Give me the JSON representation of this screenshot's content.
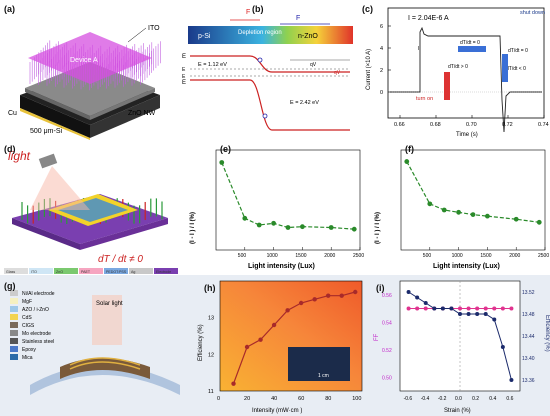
{
  "row1": {
    "a": {
      "label": "(a)",
      "texts": {
        "ito": "ITO",
        "device": "Device A",
        "cu": "Cu",
        "zno": "ZnO NW",
        "si": "500 μm-Si"
      }
    },
    "b": {
      "label": "(b)",
      "texts": {
        "psi": "p-Si",
        "depletion": "Depletion region",
        "nzno": "n-ZnO",
        "fpe": "F",
        "fpv": "F",
        "eg1": "E = 1.12 eV",
        "eg2": "E = 2.42 eV",
        "ec": "E",
        "ev": "E",
        "efn": "E",
        "efp": "E",
        "qvpy": "qV",
        "qdvl": "qV"
      }
    },
    "c": {
      "label": "(c)",
      "title": "I = 2.04E-6 A",
      "ylabel": "Current (×10 A)",
      "xlabel": "Time (s)",
      "ticks_x": [
        "0.66",
        "0.68",
        "0.70",
        "0.72",
        "0.74"
      ],
      "ticks_y": [
        "0",
        "2",
        "4",
        "6"
      ],
      "annotations": {
        "turnon": "turn on",
        "shutdown": "shut down",
        "dT0": "dT/dt = 0",
        "dTpos": "dT/dt > 0",
        "dTneg": "dT/dt < 0",
        "dT0b": "dT/dt = 0",
        "iph": "I"
      }
    }
  },
  "row2": {
    "d": {
      "label": "(d)",
      "light": "light",
      "formula": "dT / dt ≠ 0",
      "legend": [
        "Glass",
        "ITO",
        "ZnO",
        "PAET",
        "PEDOT:PSS",
        "Ag",
        "Electrode"
      ]
    },
    "e": {
      "label": "(e)",
      "ylabel": "(I - I ) / I (%)",
      "xlabel": "Light intensity (Lux)"
    },
    "f": {
      "label": "(f)",
      "ylabel": "(I - I ) / I (%)",
      "xlabel": "Light intensity (Lux)"
    }
  },
  "row3": {
    "g": {
      "label": "(g)",
      "legend": [
        "Ni/Al electrode",
        "MgF",
        "AZO / i-ZnO",
        "CdS",
        "CIGS",
        "Mo electrode",
        "Stainless steel",
        "Epoxy",
        "Mica"
      ],
      "light": "Solar light"
    },
    "h": {
      "label": "(h)",
      "ylabel": "Efficiency (%)",
      "xlabel": "Intensity (mW·cm )",
      "ticks_x": [
        "0",
        "20",
        "40",
        "60",
        "80",
        "100"
      ],
      "ticks_y": [
        "11",
        "12",
        "13"
      ],
      "scale": "1 cm"
    },
    "i": {
      "label": "(i)",
      "ylabel_left": "FF",
      "ylabel_right": "Efficiency (%)",
      "xlabel": "Strain (%)",
      "ticks_x": [
        "-0.6",
        "-0.4",
        "-0.2",
        "0.0",
        "0.2",
        "0.4",
        "0.6"
      ],
      "ticks_yl": [
        "0.56",
        "0.54",
        "0.52",
        "0.50"
      ],
      "ticks_yr": [
        "13.52",
        "13.48",
        "13.44",
        "13.40",
        "13.36"
      ]
    }
  },
  "chart_data": [
    {
      "type": "line",
      "panel": "e",
      "x": [
        100,
        500,
        750,
        1000,
        1250,
        1500,
        2000,
        2400
      ],
      "y": [
        10.5,
        3.8,
        3.0,
        3.2,
        2.7,
        2.8,
        2.7,
        2.5
      ],
      "xlabel": "Light intensity (Lux)",
      "xlim": [
        0,
        2500
      ],
      "ylim": [
        0,
        12
      ]
    },
    {
      "type": "line",
      "panel": "f",
      "x": [
        100,
        500,
        750,
        1000,
        1250,
        1500,
        2000,
        2400
      ],
      "y": [
        11.5,
        6.0,
        5.2,
        4.9,
        4.6,
        4.4,
        4.0,
        3.6
      ],
      "xlabel": "Light intensity (Lux)",
      "xlim": [
        0,
        2500
      ],
      "ylim": [
        0,
        13
      ]
    },
    {
      "type": "line",
      "panel": "h",
      "x": [
        10,
        20,
        30,
        40,
        50,
        60,
        70,
        80,
        90,
        100
      ],
      "y": [
        11.2,
        12.2,
        12.4,
        12.8,
        13.2,
        13.4,
        13.5,
        13.6,
        13.6,
        13.7
      ],
      "xlabel": "Intensity (mW·cm )",
      "ylabel": "Efficiency (%)",
      "xlim": [
        0,
        105
      ],
      "ylim": [
        11,
        14
      ]
    },
    {
      "type": "line",
      "panel": "i",
      "x": [
        -0.6,
        -0.5,
        -0.4,
        -0.3,
        -0.2,
        -0.1,
        0.0,
        0.1,
        0.2,
        0.3,
        0.4,
        0.5,
        0.6
      ],
      "series": [
        {
          "name": "FF",
          "values": [
            0.55,
            0.55,
            0.55,
            0.55,
            0.55,
            0.55,
            0.55,
            0.55,
            0.55,
            0.55,
            0.55,
            0.55,
            0.55
          ]
        },
        {
          "name": "Efficiency",
          "values": [
            13.52,
            13.51,
            13.5,
            13.49,
            13.49,
            13.49,
            13.48,
            13.48,
            13.48,
            13.48,
            13.47,
            13.42,
            13.36
          ]
        }
      ],
      "xlabel": "Strain (%)",
      "xlim": [
        -0.7,
        0.7
      ]
    }
  ],
  "colors": {
    "grid": "#cccccc",
    "green": "#2a8a2a",
    "purple": "#c01fc8",
    "navy": "#1b2a6b",
    "pink": "#e0338f",
    "orange": "#f5a43a"
  }
}
